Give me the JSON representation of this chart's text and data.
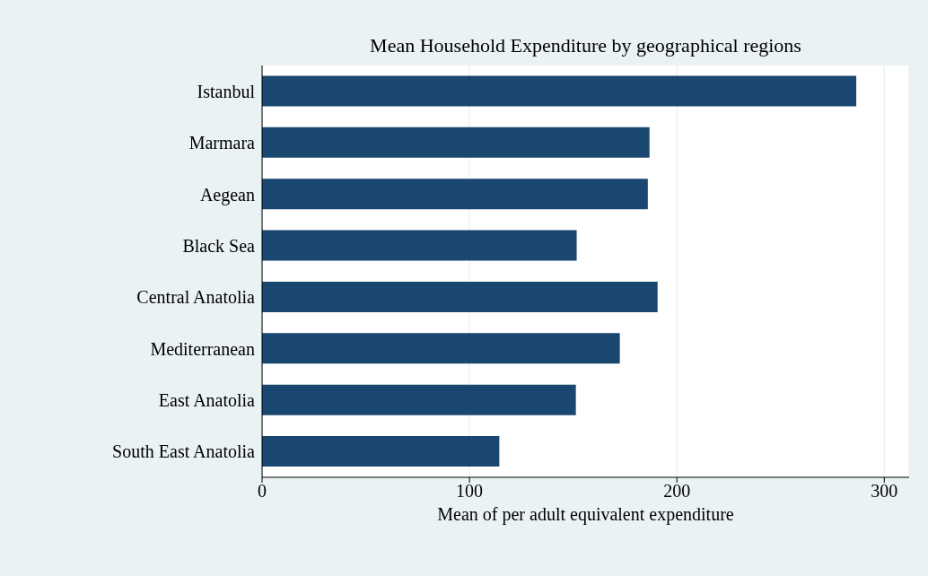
{
  "chart_data": {
    "type": "bar",
    "orientation": "horizontal",
    "title": "Mean Household Expenditure by geographical regions",
    "xlabel": "Mean of per adult equivalent expenditure",
    "categories": [
      "Istanbul",
      "Marmara",
      "Aegean",
      "Black Sea",
      "Central Anatolia",
      "Mediterranean",
      "East Anatolia",
      "South East Anatolia"
    ],
    "values": [
      286.5,
      186.8,
      186,
      151.7,
      190.7,
      172.5,
      151.3,
      114.4
    ],
    "color": "#1a476f",
    "xlim": [
      0,
      312
    ],
    "xticks": [
      0,
      100,
      200,
      300
    ],
    "grid": "x"
  }
}
